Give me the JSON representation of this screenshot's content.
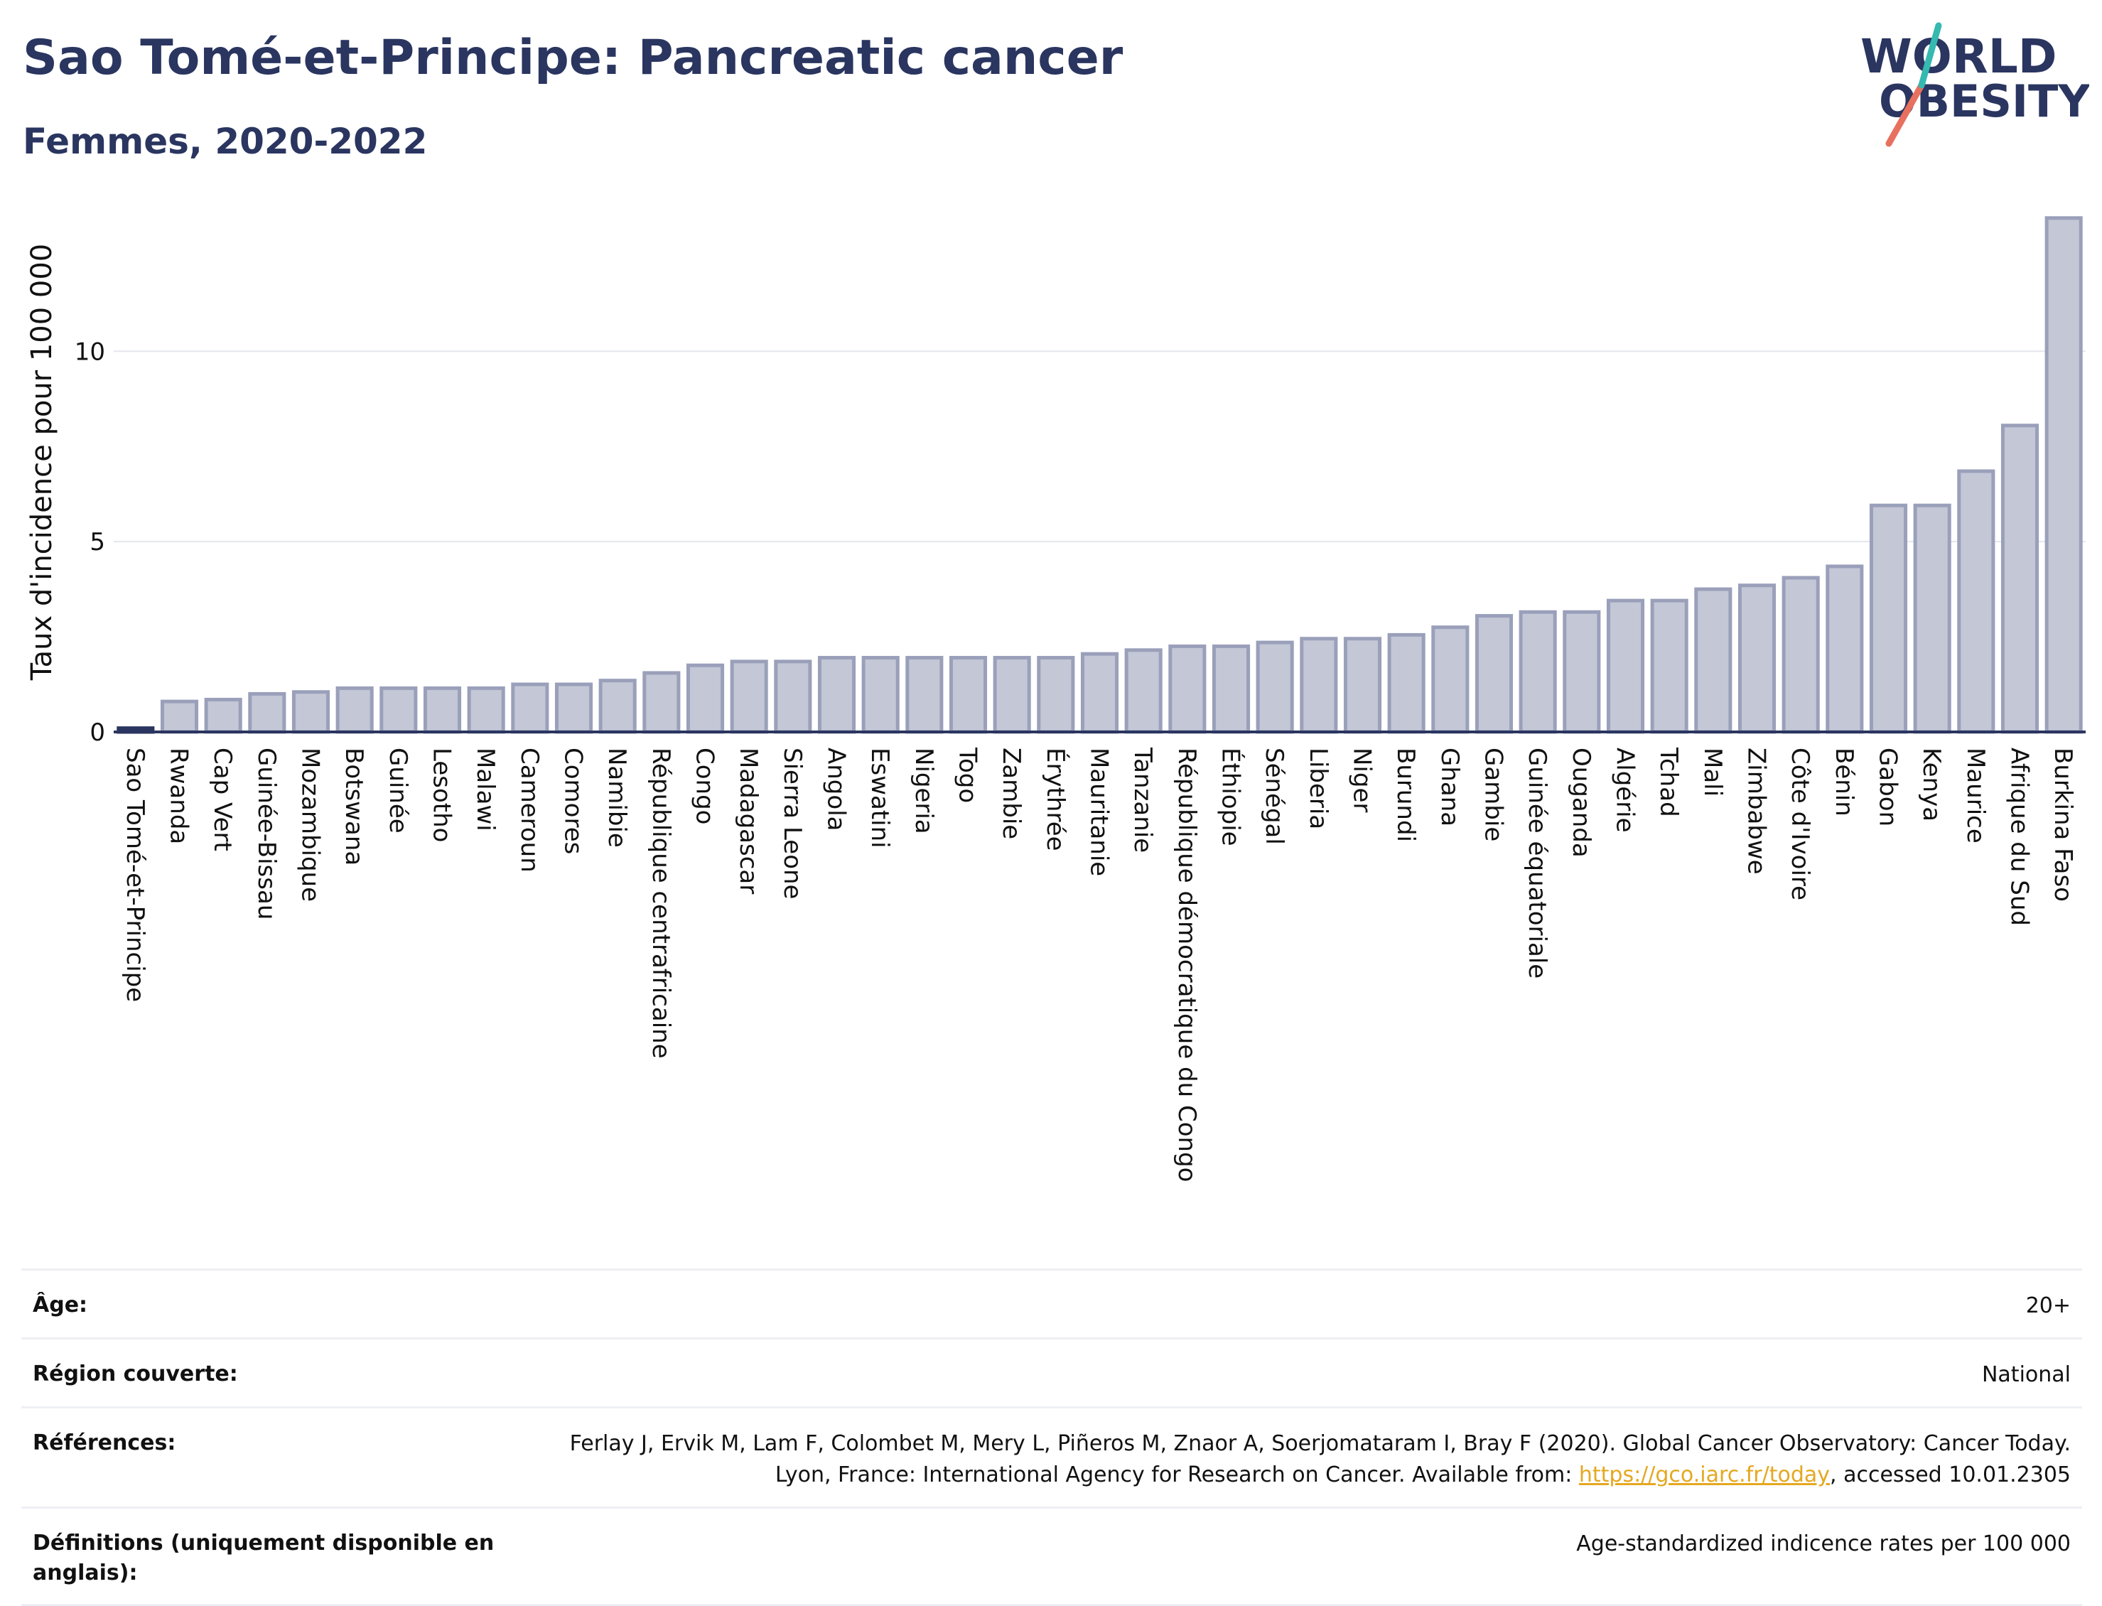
{
  "header": {
    "title": "Sao Tomé-et-Principe: Pancreatic cancer",
    "subtitle": "Femmes, 2020-2022"
  },
  "logo": {
    "line1": "WORLD",
    "line2": "OBESITY"
  },
  "colors": {
    "bar_fill": "#c3c7d6",
    "bar_stroke": "#9aa0ba",
    "highlight": "#2a3560",
    "grid": "#e4e6ee",
    "link": "#e5a820"
  },
  "chart_data": {
    "type": "bar",
    "ylabel": "Taux d'incidence pour 100 000",
    "ylim": [
      0,
      14.0
    ],
    "yticks": [
      0,
      5,
      10
    ],
    "grid": true,
    "highlight_category": "Sao Tomé-et-Principe",
    "categories": [
      "Sao Tomé-et-Principe",
      "Rwanda",
      "Cap Vert",
      "Guinée-Bissau",
      "Mozambique",
      "Botswana",
      "Guinée",
      "Lesotho",
      "Malawi",
      "Cameroun",
      "Comores",
      "Namibie",
      "République centrafricaine",
      "Congo",
      "Madagascar",
      "Sierra Leone",
      "Angola",
      "Eswatini",
      "Nigeria",
      "Togo",
      "Zambie",
      "Érythrée",
      "Mauritanie",
      "Tanzanie",
      "République démocratique du Congo",
      "Éthiopie",
      "Sénégal",
      "Liberia",
      "Niger",
      "Burundi",
      "Ghana",
      "Gambie",
      "Guinée équatoriale",
      "Ouganda",
      "Algérie",
      "Tchad",
      "Mali",
      "Zimbabwe",
      "Côte d'Ivoire",
      "Bénin",
      "Gabon",
      "Kenya",
      "Maurice",
      "Afrique du Sud",
      "Burkina Faso"
    ],
    "values": [
      0.1,
      0.8,
      0.85,
      1.0,
      1.05,
      1.15,
      1.15,
      1.15,
      1.15,
      1.25,
      1.25,
      1.35,
      1.55,
      1.75,
      1.85,
      1.85,
      1.95,
      1.95,
      1.95,
      1.95,
      1.95,
      1.95,
      2.05,
      2.15,
      2.25,
      2.25,
      2.35,
      2.45,
      2.45,
      2.55,
      2.75,
      3.05,
      3.15,
      3.15,
      3.45,
      3.45,
      3.75,
      3.85,
      4.05,
      4.35,
      5.95,
      5.95,
      6.85,
      8.05,
      13.5
    ]
  },
  "info": [
    {
      "label": "Âge:",
      "value": "20+"
    },
    {
      "label": "Région couverte:",
      "value": "National"
    },
    {
      "label": "Références:",
      "value": "Ferlay J, Ervik M, Lam F, Colombet M, Mery L, Piñeros M, Znaor A, Soerjomataram I, Bray F (2020). Global Cancer Observatory: Cancer Today. Lyon, France: International Agency for Research on Cancer. Available from: ",
      "link": "https://gco.iarc.fr/today",
      "value_end": ", accessed 10.01.2305"
    },
    {
      "label": "Définitions (uniquement disponible en anglais):",
      "value": "Age-standardized indicence rates per 100 000"
    }
  ]
}
